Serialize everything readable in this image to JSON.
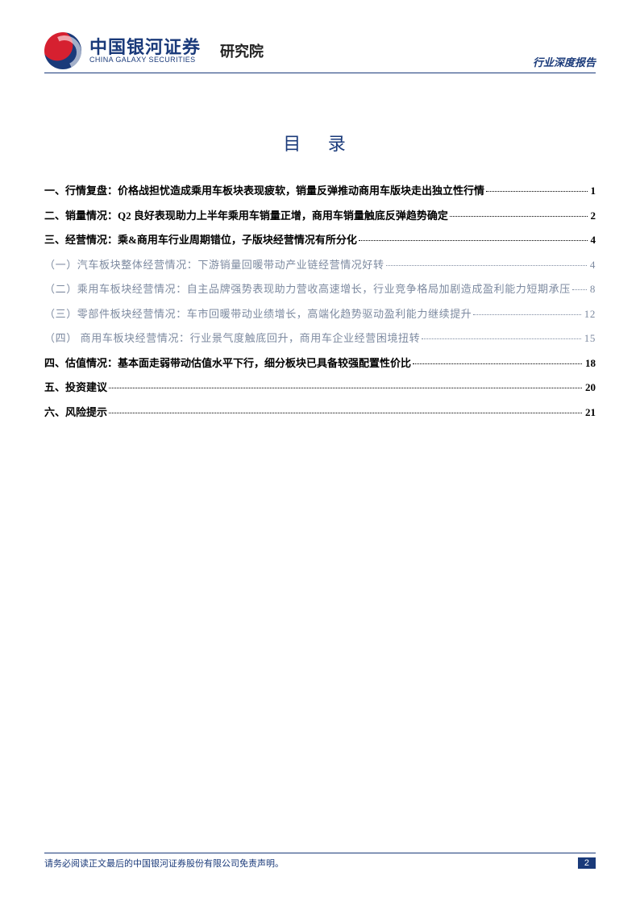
{
  "header": {
    "logo_cn": "中国银河证券",
    "logo_en": "CHINA GALAXY SECURITIES",
    "department": "研究院",
    "doc_type": "行业深度报告"
  },
  "toc_title": "目 录",
  "toc": [
    {
      "level": 1,
      "label": "一、行情复盘：价格战担忧造成乘用车板块表现疲软，销量反弹推动商用车版块走出独立性行情",
      "page": "1"
    },
    {
      "level": 1,
      "label": "二、销量情况：Q2 良好表现助力上半年乘用车销量正增，商用车销量触底反弹趋势确定",
      "page": "2"
    },
    {
      "level": 1,
      "label": "三、经营情况：乘&商用车行业周期错位，子版块经营情况有所分化",
      "page": "4"
    },
    {
      "level": 2,
      "label": "（一）汽车板块整体经营情况：下游销量回暖带动产业链经营情况好转",
      "page": "4"
    },
    {
      "level": 2,
      "label": "（二）乘用车板块经营情况：自主品牌强势表现助力营收高速增长，行业竞争格局加剧造成盈利能力短期承压",
      "page": "8"
    },
    {
      "level": 2,
      "label": "（三）零部件板块经营情况：车市回暖带动业绩增长，高端化趋势驱动盈利能力继续提升",
      "page": "12"
    },
    {
      "level": 2,
      "label": "（四） 商用车板块经营情况：行业景气度触底回升，商用车企业经营困境扭转",
      "page": "15"
    },
    {
      "level": 1,
      "label": "四、估值情况：基本面走弱带动估值水平下行，细分板块已具备较强配置性价比",
      "page": "18"
    },
    {
      "level": 1,
      "label": "五、投资建议",
      "page": "20"
    },
    {
      "level": 1,
      "label": "六、风险提示",
      "page": "21"
    }
  ],
  "footer": {
    "disclaimer": "请务必阅读正文最后的中国银河证券股份有限公司免责声明。",
    "page_number": "2"
  },
  "colors": {
    "brand_blue": "#1a3a7a",
    "brand_red": "#d62030",
    "muted": "#7d8aa0"
  }
}
